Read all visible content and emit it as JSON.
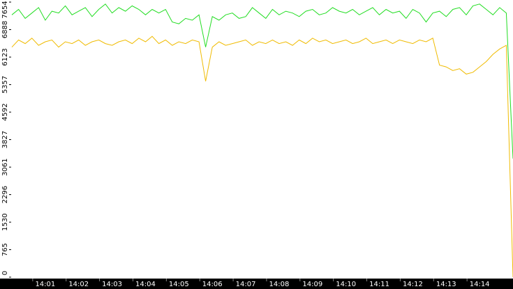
{
  "chart_data": {
    "type": "line",
    "categories": [
      null,
      null,
      null,
      null,
      null,
      "14:01",
      null,
      null,
      null,
      null,
      "14:02",
      null,
      null,
      null,
      null,
      "14:03",
      null,
      null,
      null,
      null,
      "14:04",
      null,
      null,
      null,
      null,
      "14:05",
      null,
      null,
      null,
      null,
      "14:06",
      null,
      null,
      null,
      null,
      "14:07",
      null,
      null,
      null,
      null,
      "14:08",
      null,
      null,
      null,
      null,
      "14:09",
      null,
      null,
      null,
      null,
      "14:10",
      null,
      null,
      null,
      null,
      "14:11",
      null,
      null,
      null,
      null,
      "14:12",
      null,
      null,
      null,
      null,
      "14:13",
      null,
      null,
      null,
      null,
      "14:14",
      null,
      null,
      null,
      null,
      null
    ],
    "series": [
      {
        "color": "#22dd22",
        "values": [
          7300,
          7450,
          7200,
          7350,
          7500,
          7150,
          7400,
          7350,
          7550,
          7300,
          7400,
          7500,
          7250,
          7450,
          7600,
          7350,
          7500,
          7400,
          7550,
          7450,
          7300,
          7450,
          7350,
          7450,
          7100,
          7050,
          7200,
          7150,
          7300,
          6400,
          7250,
          7150,
          7300,
          7350,
          7200,
          7250,
          7500,
          7350,
          7200,
          7450,
          7300,
          7400,
          7350,
          7250,
          7400,
          7450,
          7300,
          7350,
          7500,
          7400,
          7350,
          7450,
          7300,
          7400,
          7500,
          7300,
          7450,
          7350,
          7400,
          7200,
          7450,
          7350,
          7100,
          7350,
          7400,
          7250,
          7450,
          7500,
          7300,
          7550,
          7600,
          7450,
          7300,
          7500,
          7350,
          3300
        ]
      },
      {
        "color": "#f0bb00",
        "values": [
          6400,
          6600,
          6500,
          6650,
          6450,
          6550,
          6600,
          6400,
          6550,
          6500,
          6600,
          6450,
          6550,
          6600,
          6500,
          6450,
          6550,
          6600,
          6500,
          6650,
          6550,
          6700,
          6500,
          6600,
          6450,
          6550,
          6500,
          6600,
          6550,
          5450,
          6400,
          6550,
          6450,
          6500,
          6550,
          6600,
          6450,
          6550,
          6500,
          6600,
          6500,
          6550,
          6450,
          6600,
          6500,
          6650,
          6550,
          6600,
          6500,
          6550,
          6600,
          6500,
          6550,
          6650,
          6500,
          6550,
          6600,
          6500,
          6600,
          6550,
          6500,
          6600,
          6550,
          6650,
          5900,
          5850,
          5750,
          5800,
          5650,
          5700,
          5850,
          6000,
          6200,
          6350,
          6450,
          0
        ]
      }
    ],
    "ylim": [
      0,
      7654
    ],
    "yticks": [
      0,
      765,
      1530,
      2296,
      3061,
      3827,
      4592,
      5357,
      6123,
      6888,
      7654
    ],
    "grid": false
  }
}
